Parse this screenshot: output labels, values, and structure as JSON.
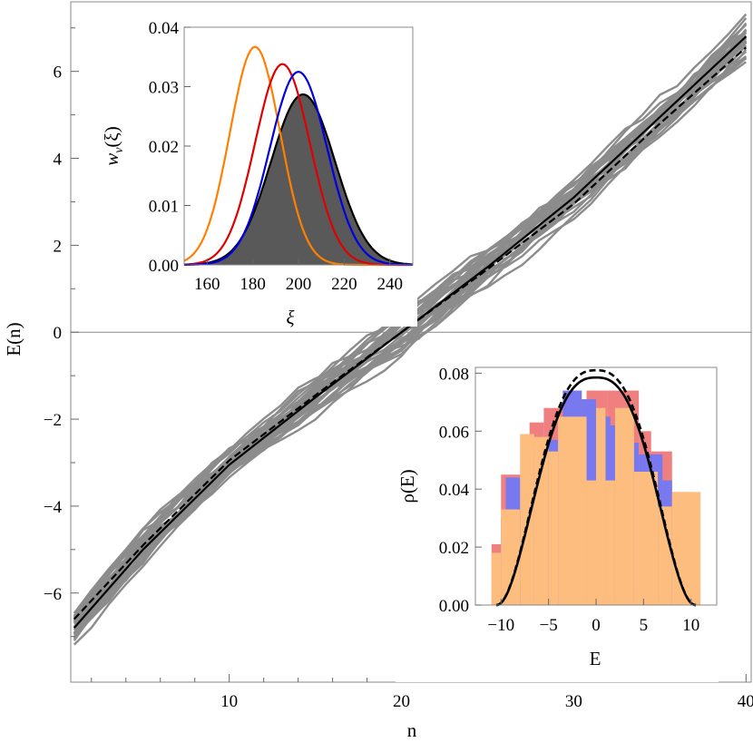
{
  "chart_data": [
    {
      "id": "main",
      "type": "line",
      "title": "",
      "xlabel": "n",
      "ylabel": "E(n)",
      "xlim": [
        0.8,
        40.3
      ],
      "ylim": [
        -8.05,
        7.6
      ],
      "xticks": [
        10,
        20,
        30,
        40
      ],
      "yticks": [
        -6,
        -4,
        -2,
        0,
        2,
        4,
        6
      ],
      "xtick_labels": [
        "10",
        "20",
        "30",
        "40"
      ],
      "ytick_labels": [
        "−6",
        "−4",
        "−2",
        "0",
        "2",
        "4",
        "6"
      ],
      "horizontal_rule_y": 0,
      "grid": false,
      "ensemble": {
        "description_visible": false,
        "count": 32,
        "color": "#8c8c8c",
        "n_start": 1,
        "n_end": 40
      },
      "series": [
        {
          "style": "solid",
          "color": "#000000",
          "x": [
            1,
            5,
            10,
            15,
            20,
            25,
            30,
            35,
            40
          ],
          "y": [
            -6.8,
            -5.0,
            -3.05,
            -1.5,
            0.0,
            1.5,
            3.1,
            4.95,
            6.8
          ]
        },
        {
          "style": "dashed",
          "color": "#000000",
          "x": [
            1,
            5,
            10,
            15,
            20,
            25,
            30,
            35,
            40
          ],
          "y": [
            -6.6,
            -4.9,
            -2.95,
            -1.45,
            0.0,
            1.45,
            2.95,
            4.8,
            6.55
          ]
        }
      ]
    },
    {
      "id": "inset-top",
      "type": "area",
      "title": "",
      "xlabel": "ξ",
      "ylabel": "w_ν(ξ)",
      "ylabel_main": "w",
      "ylabel_sub": "ν",
      "ylabel_arg": "(ξ)",
      "xlim": [
        150,
        250
      ],
      "ylim": [
        0,
        0.04
      ],
      "xticks": [
        160,
        180,
        200,
        220,
        240
      ],
      "yticks": [
        0,
        0.01,
        0.02,
        0.03,
        0.04
      ],
      "xtick_labels": [
        "160",
        "180",
        "200",
        "220",
        "240"
      ],
      "ytick_labels": [
        "0.00",
        "0.01",
        "0.02",
        "0.03",
        "0.04"
      ],
      "grid": false,
      "curves": [
        {
          "color": "#ff8000",
          "mean": 181,
          "sd": 11,
          "peak": 0.0367,
          "filled": false
        },
        {
          "color": "#e00000",
          "mean": 193,
          "sd": 12,
          "peak": 0.0338,
          "filled": false
        },
        {
          "color": "#0000e0",
          "mean": 200,
          "sd": 12.5,
          "peak": 0.0325,
          "filled": false
        },
        {
          "color": "#000000",
          "mean": 202,
          "sd": 14,
          "peak": 0.0287,
          "filled": true,
          "fill": "#595959"
        }
      ]
    },
    {
      "id": "inset-bottom",
      "type": "bar",
      "title": "",
      "xlabel": "E",
      "ylabel": "ρ(E)",
      "xlim": [
        -12.7,
        12.7
      ],
      "ylim": [
        0,
        0.082
      ],
      "xticks": [
        -10,
        -5,
        0,
        5,
        10
      ],
      "yticks": [
        0,
        0.02,
        0.04,
        0.06,
        0.08
      ],
      "xtick_labels": [
        "−10",
        "−5",
        "0",
        "5",
        "10"
      ],
      "ytick_labels": [
        "0.00",
        "0.02",
        "0.04",
        "0.06",
        "0.08"
      ],
      "grid": false,
      "histograms": [
        {
          "color": "#f08080",
          "bins": [
            [
              -11,
              -10,
              0.021
            ],
            [
              -10,
              -7,
              0.045
            ],
            [
              -7,
              -5.5,
              0.063
            ],
            [
              -5.5,
              -3,
              0.068
            ],
            [
              -3,
              -1,
              0.071
            ],
            [
              -1,
              0,
              0.074
            ],
            [
              0,
              1.2,
              0.074
            ],
            [
              1.2,
              4.5,
              0.074
            ],
            [
              4.5,
              5.8,
              0.06
            ],
            [
              5.8,
              8,
              0.053
            ],
            [
              8,
              10,
              0.039
            ]
          ]
        },
        {
          "color": "#7878f0",
          "bins": [
            [
              -10,
              -9.5,
              0.03
            ],
            [
              -9.5,
              -7,
              0.044
            ],
            [
              -7,
              -6,
              0.052
            ],
            [
              -6,
              -3.5,
              0.057
            ],
            [
              -3.5,
              -1.5,
              0.074
            ],
            [
              -1.5,
              0,
              0.071
            ],
            [
              0,
              1.5,
              0.065
            ],
            [
              1.5,
              3,
              0.062
            ],
            [
              3,
              4.5,
              0.056
            ],
            [
              4.5,
              6,
              0.052
            ],
            [
              6,
              7,
              0.052
            ],
            [
              7,
              8,
              0.043
            ]
          ]
        },
        {
          "color": "#fdbd7e",
          "bins": [
            [
              -11,
              -10,
              0.018
            ],
            [
              -10,
              -8,
              0.033
            ],
            [
              -8,
              -6.5,
              0.059
            ],
            [
              -6.5,
              -5,
              0.058
            ],
            [
              -5,
              -4,
              0.053
            ],
            [
              -4,
              -1,
              0.065
            ],
            [
              -1,
              0,
              0.043
            ],
            [
              0,
              1,
              0.068
            ],
            [
              1,
              2,
              0.043
            ],
            [
              2,
              4,
              0.068
            ],
            [
              4,
              6.5,
              0.046
            ],
            [
              6.5,
              8,
              0.034
            ],
            [
              8,
              11,
              0.039
            ]
          ]
        }
      ],
      "curves": [
        {
          "style": "solid",
          "color": "#000000",
          "scale": 10.5,
          "peak": 0.0785
        },
        {
          "style": "dashed",
          "color": "#000000",
          "scale": 10.5,
          "peak": 0.081
        }
      ]
    }
  ]
}
